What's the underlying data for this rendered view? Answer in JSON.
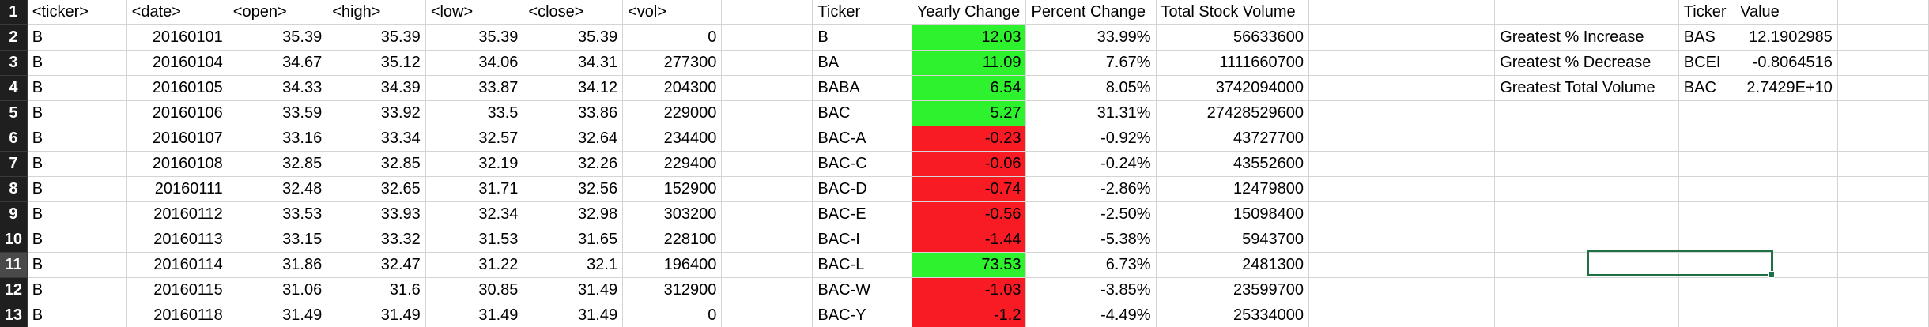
{
  "columns": [
    {
      "key": "rownum",
      "width": 36,
      "cls": "rh"
    },
    {
      "key": "ticker",
      "width": 132,
      "cls": "l"
    },
    {
      "key": "date",
      "width": 132,
      "cls": "r"
    },
    {
      "key": "open",
      "width": 132,
      "cls": "r"
    },
    {
      "key": "high",
      "width": 132,
      "cls": "r"
    },
    {
      "key": "low",
      "width": 132,
      "cls": "r"
    },
    {
      "key": "close",
      "width": 132,
      "cls": "r"
    },
    {
      "key": "vol",
      "width": 132,
      "cls": "r"
    },
    {
      "key": "blank1",
      "width": 130,
      "cls": "l"
    },
    {
      "key": "sum_ticker",
      "width": 132,
      "cls": "l"
    },
    {
      "key": "yearly_change",
      "width": 145,
      "cls": "r"
    },
    {
      "key": "percent_change",
      "width": 165,
      "cls": "r"
    },
    {
      "key": "total_volume",
      "width": 195,
      "cls": "r"
    },
    {
      "key": "blank2",
      "width": 133,
      "cls": "l"
    },
    {
      "key": "blank3",
      "width": 133,
      "cls": "l"
    },
    {
      "key": "label",
      "width": 236,
      "cls": "l"
    },
    {
      "key": "g_ticker",
      "width": 72,
      "cls": "l"
    },
    {
      "key": "g_value",
      "width": 131,
      "cls": "r"
    },
    {
      "key": "blank4",
      "width": 130,
      "cls": "l"
    }
  ],
  "rows": [
    {
      "num": "1",
      "ticker": "<ticker>",
      "date": "<date>",
      "open": "<open>",
      "high": "<high>",
      "low": "<low>",
      "close": "<close>",
      "vol": "<vol>",
      "sum_ticker": "Ticker",
      "yearly_change": "Yearly Change",
      "percent_change": "Percent Change",
      "total_volume": "Total Stock Volume",
      "label": "",
      "g_ticker": "Ticker",
      "g_value": "Value",
      "header": true
    },
    {
      "num": "2",
      "ticker": "B",
      "date": "20160101",
      "open": "35.39",
      "high": "35.39",
      "low": "35.39",
      "close": "35.39",
      "vol": "0",
      "sum_ticker": "B",
      "yearly_change": "12.03",
      "percent_change": "33.99%",
      "total_volume": "56633600",
      "label": "Greatest % Increase",
      "g_ticker": "BAS",
      "g_value": "12.1902985",
      "change_sign": "pos"
    },
    {
      "num": "3",
      "ticker": "B",
      "date": "20160104",
      "open": "34.67",
      "high": "35.12",
      "low": "34.06",
      "close": "34.31",
      "vol": "277300",
      "sum_ticker": "BA",
      "yearly_change": "11.09",
      "percent_change": "7.67%",
      "total_volume": "1111660700",
      "label": "Greatest % Decrease",
      "g_ticker": "BCEI",
      "g_value": "-0.8064516",
      "change_sign": "pos"
    },
    {
      "num": "4",
      "ticker": "B",
      "date": "20160105",
      "open": "34.33",
      "high": "34.39",
      "low": "33.87",
      "close": "34.12",
      "vol": "204300",
      "sum_ticker": "BABA",
      "yearly_change": "6.54",
      "percent_change": "8.05%",
      "total_volume": "3742094000",
      "label": "Greatest Total Volume",
      "g_ticker": "BAC",
      "g_value": "2.7429E+10",
      "change_sign": "pos"
    },
    {
      "num": "5",
      "ticker": "B",
      "date": "20160106",
      "open": "33.59",
      "high": "33.92",
      "low": "33.5",
      "close": "33.86",
      "vol": "229000",
      "sum_ticker": "BAC",
      "yearly_change": "5.27",
      "percent_change": "31.31%",
      "total_volume": "27428529600",
      "label": "",
      "g_ticker": "",
      "g_value": "",
      "change_sign": "pos"
    },
    {
      "num": "6",
      "ticker": "B",
      "date": "20160107",
      "open": "33.16",
      "high": "33.34",
      "low": "32.57",
      "close": "32.64",
      "vol": "234400",
      "sum_ticker": "BAC-A",
      "yearly_change": "-0.23",
      "percent_change": "-0.92%",
      "total_volume": "43727700",
      "label": "",
      "g_ticker": "",
      "g_value": "",
      "change_sign": "neg"
    },
    {
      "num": "7",
      "ticker": "B",
      "date": "20160108",
      "open": "32.85",
      "high": "32.85",
      "low": "32.19",
      "close": "32.26",
      "vol": "229400",
      "sum_ticker": "BAC-C",
      "yearly_change": "-0.06",
      "percent_change": "-0.24%",
      "total_volume": "43552600",
      "label": "",
      "g_ticker": "",
      "g_value": "",
      "change_sign": "neg"
    },
    {
      "num": "8",
      "ticker": "B",
      "date": "20160111",
      "open": "32.48",
      "high": "32.65",
      "low": "31.71",
      "close": "32.56",
      "vol": "152900",
      "sum_ticker": "BAC-D",
      "yearly_change": "-0.74",
      "percent_change": "-2.86%",
      "total_volume": "12479800",
      "label": "",
      "g_ticker": "",
      "g_value": "",
      "change_sign": "neg"
    },
    {
      "num": "9",
      "ticker": "B",
      "date": "20160112",
      "open": "33.53",
      "high": "33.93",
      "low": "32.34",
      "close": "32.98",
      "vol": "303200",
      "sum_ticker": "BAC-E",
      "yearly_change": "-0.56",
      "percent_change": "-2.50%",
      "total_volume": "15098400",
      "label": "",
      "g_ticker": "",
      "g_value": "",
      "change_sign": "neg"
    },
    {
      "num": "10",
      "ticker": "B",
      "date": "20160113",
      "open": "33.15",
      "high": "33.32",
      "low": "31.53",
      "close": "31.65",
      "vol": "228100",
      "sum_ticker": "BAC-I",
      "yearly_change": "-1.44",
      "percent_change": "-5.38%",
      "total_volume": "5943700",
      "label": "",
      "g_ticker": "",
      "g_value": "",
      "change_sign": "neg"
    },
    {
      "num": "11",
      "ticker": "B",
      "date": "20160114",
      "open": "31.86",
      "high": "32.47",
      "low": "31.22",
      "close": "32.1",
      "vol": "196400",
      "sum_ticker": "BAC-L",
      "yearly_change": "73.53",
      "percent_change": "6.73%",
      "total_volume": "2481300",
      "label": "",
      "g_ticker": "",
      "g_value": "",
      "change_sign": "pos",
      "selected": true
    },
    {
      "num": "12",
      "ticker": "B",
      "date": "20160115",
      "open": "31.06",
      "high": "31.6",
      "low": "30.85",
      "close": "31.49",
      "vol": "312900",
      "sum_ticker": "BAC-W",
      "yearly_change": "-1.03",
      "percent_change": "-3.85%",
      "total_volume": "23599700",
      "label": "",
      "g_ticker": "",
      "g_value": "",
      "change_sign": "neg"
    },
    {
      "num": "13",
      "ticker": "B",
      "date": "20160118",
      "open": "31.49",
      "high": "31.49",
      "low": "31.49",
      "close": "31.49",
      "vol": "0",
      "sum_ticker": "BAC-Y",
      "yearly_change": "-1.2",
      "percent_change": "-4.49%",
      "total_volume": "25334000",
      "label": "",
      "g_ticker": "",
      "g_value": "",
      "change_sign": "neg"
    }
  ],
  "colors": {
    "positive": "#2df22d",
    "negative": "#f81b24",
    "selection": "#1e7145",
    "row_header_bg": "#1f1f1f"
  }
}
